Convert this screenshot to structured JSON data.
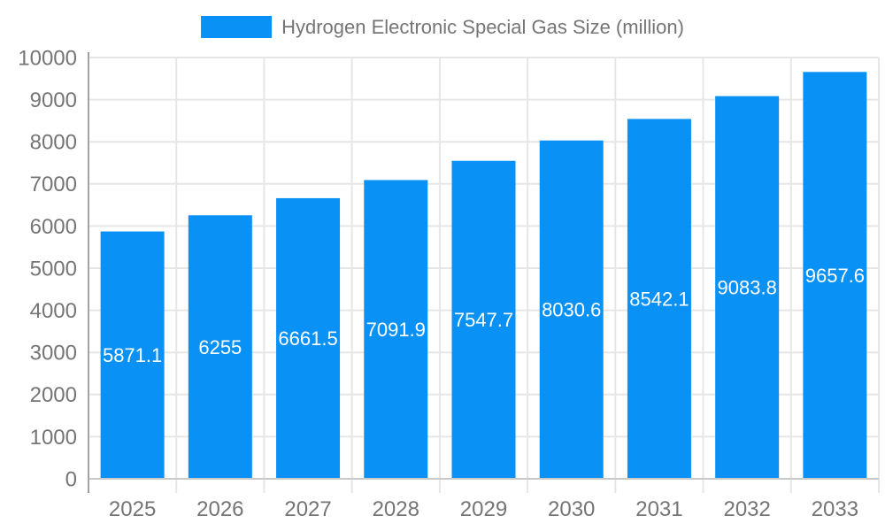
{
  "chart_data": {
    "type": "bar",
    "title": "",
    "legend": "Hydrogen Electronic Special Gas Size (million)",
    "legend_position": "top",
    "categories": [
      "2025",
      "2026",
      "2027",
      "2028",
      "2029",
      "2030",
      "2031",
      "2032",
      "2033"
    ],
    "values": [
      5871.1,
      6255,
      6661.5,
      7091.9,
      7547.7,
      8030.6,
      8542.1,
      9083.8,
      9657.6
    ],
    "value_labels": [
      "5871.1",
      "6255",
      "6661.5",
      "7091.9",
      "7547.7",
      "8030.6",
      "8542.1",
      "9083.8",
      "9657.6"
    ],
    "xlabel": "",
    "ylabel": "",
    "ylim": [
      0,
      10000
    ],
    "ytick_step": 1000,
    "grid": true,
    "colors": {
      "bar": "#0991F6",
      "axis_text": "#757575",
      "grid": "#E6E6E6",
      "baseline": "#C9C9C9",
      "axis_line": "#A3A3A3",
      "value_label": "#FFFFFF",
      "background": "#FFFFFF"
    }
  }
}
